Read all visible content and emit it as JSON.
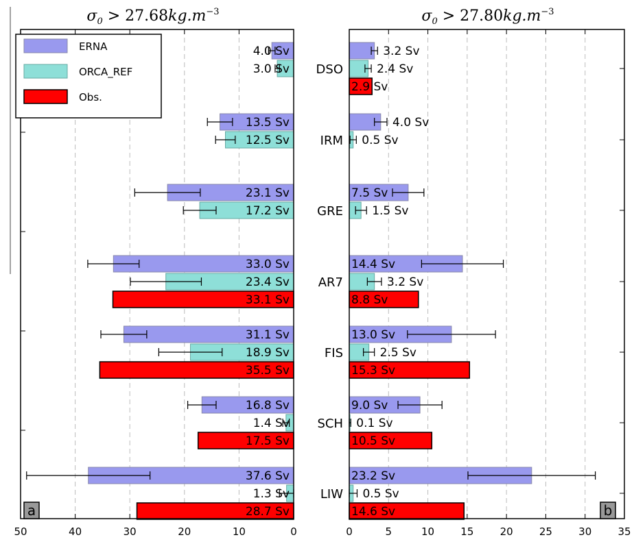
{
  "chart_data": [
    {
      "type": "bar",
      "panel_label": "a",
      "title": "σ₀ > 27.68kg.m⁻³",
      "title_parts": {
        "sym": "σ",
        "sub": "0",
        "mid": " > 27.68",
        "unit": "kg.m",
        "sup": "−3"
      },
      "orientation": "horizontal",
      "xlim": [
        50,
        0
      ],
      "xticks": [
        "50",
        "40",
        "30",
        "20",
        "10",
        "0"
      ],
      "grid": "vertical dashed",
      "legend_position": "top-left",
      "categories": [
        "DSO",
        "IRM",
        "GRE",
        "AR7",
        "FIS",
        "SCH",
        "LIW"
      ],
      "series": [
        {
          "name": "ERNA",
          "color": "#9999ee",
          "values": [
            4.0,
            13.5,
            23.1,
            33.0,
            31.1,
            16.8,
            37.6
          ],
          "labels": [
            "4.0 Sv",
            "13.5 Sv",
            "23.1 Sv",
            "33.0 Sv",
            "31.1 Sv",
            "16.8 Sv",
            "37.6 Sv"
          ],
          "errors": [
            0.6,
            2.3,
            6.0,
            4.7,
            4.2,
            2.6,
            11.3
          ]
        },
        {
          "name": "ORCA_REF",
          "color": "#8edfd8",
          "values": [
            3.0,
            12.5,
            17.2,
            23.4,
            18.9,
            1.4,
            1.3
          ],
          "labels": [
            "3.0 Sv",
            "12.5 Sv",
            "17.2 Sv",
            "23.4 Sv",
            "18.9 Sv",
            "1.4 Sv",
            "1.3 Sv"
          ],
          "errors": [
            0.4,
            1.8,
            3.0,
            6.5,
            5.8,
            0.6,
            1.3
          ]
        },
        {
          "name": "Obs.",
          "color": "#ff0000",
          "values": [
            null,
            null,
            null,
            33.1,
            35.5,
            17.5,
            28.7
          ],
          "labels": [
            "",
            "",
            "",
            "33.1 Sv",
            "35.5 Sv",
            "17.5 Sv",
            "28.7 Sv"
          ],
          "errors": [
            null,
            null,
            null,
            null,
            null,
            null,
            null
          ]
        }
      ]
    },
    {
      "type": "bar",
      "panel_label": "b",
      "title": "σ₀ > 27.80kg.m⁻³",
      "title_parts": {
        "sym": "σ",
        "sub": "0",
        "mid": " > 27.80",
        "unit": "kg.m",
        "sup": "−3"
      },
      "orientation": "horizontal",
      "xlim": [
        0,
        35
      ],
      "xticks": [
        "0",
        "5",
        "10",
        "15",
        "20",
        "25",
        "30",
        "35"
      ],
      "grid": "vertical dashed",
      "categories": [
        "DSO",
        "IRM",
        "GRE",
        "AR7",
        "FIS",
        "SCH",
        "LIW"
      ],
      "series": [
        {
          "name": "ERNA",
          "color": "#9999ee",
          "values": [
            3.2,
            4.0,
            7.5,
            14.4,
            13.0,
            9.0,
            23.2
          ],
          "labels": [
            "3.2 Sv",
            "4.0 Sv",
            "7.5 Sv",
            "14.4 Sv",
            "13.0 Sv",
            "9.0 Sv",
            "23.2 Sv"
          ],
          "errors": [
            0.4,
            0.8,
            2.0,
            5.2,
            5.6,
            2.8,
            8.1
          ]
        },
        {
          "name": "ORCA_REF",
          "color": "#8edfd8",
          "values": [
            2.4,
            0.5,
            1.5,
            3.2,
            2.5,
            0.1,
            0.5
          ],
          "labels": [
            "2.4 Sv",
            "0.5 Sv",
            "1.5 Sv",
            "3.2 Sv",
            "2.5 Sv",
            "0.1 Sv",
            "0.5 Sv"
          ],
          "errors": [
            0.4,
            0.4,
            0.7,
            0.9,
            0.7,
            0.1,
            0.5
          ]
        },
        {
          "name": "Obs.",
          "color": "#ff0000",
          "values": [
            2.9,
            null,
            null,
            8.8,
            15.3,
            10.5,
            14.6
          ],
          "labels": [
            "2.9 Sv",
            "",
            "",
            "8.8 Sv",
            "15.3 Sv",
            "10.5 Sv",
            "14.6 Sv"
          ],
          "errors": [
            null,
            null,
            null,
            null,
            null,
            null,
            null
          ]
        }
      ]
    }
  ]
}
